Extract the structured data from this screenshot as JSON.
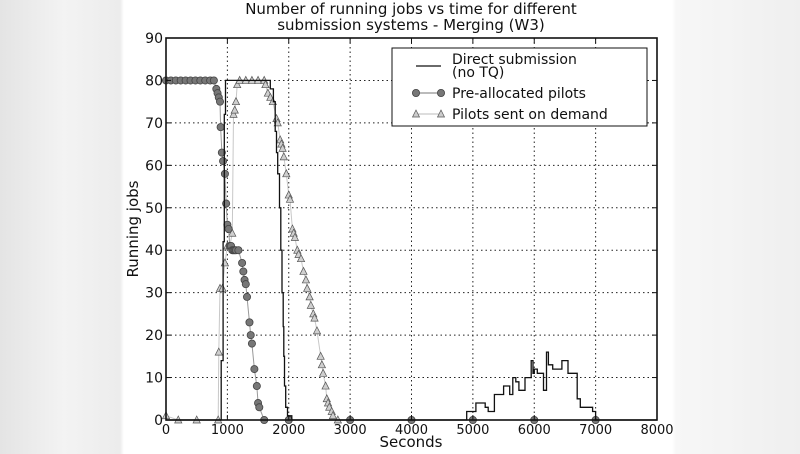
{
  "chart_data": {
    "type": "line",
    "title": "Number of running jobs  vs  time  for different\nsubmission systems   -   Merging (W3)",
    "title_lines": [
      "Number of running jobs  vs  time  for different",
      "submission systems   -   Merging (W3)"
    ],
    "xlabel": "Seconds",
    "ylabel": "Running jobs",
    "xlim": [
      0,
      8000
    ],
    "ylim": [
      0,
      90
    ],
    "xticks": [
      0,
      1000,
      2000,
      3000,
      4000,
      5000,
      6000,
      7000,
      8000
    ],
    "yticks": [
      0,
      10,
      20,
      30,
      40,
      50,
      60,
      70,
      80,
      90
    ],
    "grid": true,
    "legend_position": "upper right",
    "legend": [
      "Direct submission\n(no TQ)",
      "Pre-allocated pilots",
      "Pilots sent on demand"
    ],
    "series": [
      {
        "name": "Direct submission (no TQ)",
        "style": "step",
        "color": "#111111",
        "points": [
          [
            0,
            0
          ],
          [
            900,
            0
          ],
          [
            900,
            14
          ],
          [
            930,
            14
          ],
          [
            930,
            42
          ],
          [
            950,
            42
          ],
          [
            950,
            72
          ],
          [
            970,
            72
          ],
          [
            970,
            80
          ],
          [
            1700,
            80
          ],
          [
            1700,
            78
          ],
          [
            1750,
            78
          ],
          [
            1750,
            75
          ],
          [
            1780,
            75
          ],
          [
            1780,
            68
          ],
          [
            1800,
            68
          ],
          [
            1800,
            63
          ],
          [
            1820,
            63
          ],
          [
            1820,
            58
          ],
          [
            1850,
            58
          ],
          [
            1850,
            50
          ],
          [
            1870,
            50
          ],
          [
            1870,
            40
          ],
          [
            1890,
            40
          ],
          [
            1890,
            30
          ],
          [
            1910,
            30
          ],
          [
            1910,
            22
          ],
          [
            1920,
            22
          ],
          [
            1920,
            15
          ],
          [
            1930,
            15
          ],
          [
            1930,
            8
          ],
          [
            1950,
            8
          ],
          [
            1950,
            3
          ],
          [
            1980,
            3
          ],
          [
            1980,
            1
          ],
          [
            2050,
            1
          ],
          [
            2050,
            0
          ],
          [
            4900,
            0
          ],
          [
            4900,
            2
          ],
          [
            5050,
            2
          ],
          [
            5050,
            4
          ],
          [
            5200,
            4
          ],
          [
            5200,
            3
          ],
          [
            5250,
            3
          ],
          [
            5250,
            2
          ],
          [
            5350,
            2
          ],
          [
            5350,
            6
          ],
          [
            5500,
            6
          ],
          [
            5500,
            8
          ],
          [
            5600,
            8
          ],
          [
            5600,
            6
          ],
          [
            5650,
            6
          ],
          [
            5650,
            10
          ],
          [
            5700,
            10
          ],
          [
            5700,
            9
          ],
          [
            5750,
            9
          ],
          [
            5750,
            7
          ],
          [
            5850,
            7
          ],
          [
            5850,
            10
          ],
          [
            5950,
            10
          ],
          [
            5950,
            14
          ],
          [
            5980,
            14
          ],
          [
            5980,
            11
          ],
          [
            6000,
            11
          ],
          [
            6000,
            12
          ],
          [
            6050,
            12
          ],
          [
            6050,
            11
          ],
          [
            6150,
            11
          ],
          [
            6150,
            7
          ],
          [
            6200,
            7
          ],
          [
            6200,
            16
          ],
          [
            6230,
            16
          ],
          [
            6230,
            13
          ],
          [
            6300,
            13
          ],
          [
            6300,
            12
          ],
          [
            6450,
            12
          ],
          [
            6450,
            14
          ],
          [
            6550,
            14
          ],
          [
            6550,
            11
          ],
          [
            6700,
            11
          ],
          [
            6700,
            5
          ],
          [
            6750,
            5
          ],
          [
            6750,
            3
          ],
          [
            6950,
            3
          ],
          [
            6950,
            2
          ],
          [
            7000,
            2
          ],
          [
            7000,
            0
          ],
          [
            8000,
            0
          ]
        ]
      },
      {
        "name": "Pre-allocated pilots",
        "style": "line-circle",
        "color": "#777777",
        "points": [
          [
            0,
            80
          ],
          [
            80,
            80
          ],
          [
            160,
            80
          ],
          [
            240,
            80
          ],
          [
            320,
            80
          ],
          [
            400,
            80
          ],
          [
            480,
            80
          ],
          [
            560,
            80
          ],
          [
            640,
            80
          ],
          [
            720,
            80
          ],
          [
            780,
            80
          ],
          [
            820,
            78
          ],
          [
            840,
            77
          ],
          [
            860,
            76
          ],
          [
            880,
            75
          ],
          [
            890,
            69
          ],
          [
            910,
            63
          ],
          [
            930,
            61
          ],
          [
            960,
            58
          ],
          [
            980,
            51
          ],
          [
            1000,
            46
          ],
          [
            1020,
            45
          ],
          [
            1040,
            41
          ],
          [
            1060,
            41
          ],
          [
            1080,
            40
          ],
          [
            1100,
            40
          ],
          [
            1120,
            40
          ],
          [
            1140,
            40
          ],
          [
            1180,
            40
          ],
          [
            1240,
            37
          ],
          [
            1260,
            35
          ],
          [
            1280,
            33
          ],
          [
            1300,
            32
          ],
          [
            1320,
            29
          ],
          [
            1360,
            23
          ],
          [
            1380,
            20
          ],
          [
            1400,
            18
          ],
          [
            1440,
            12
          ],
          [
            1480,
            8
          ],
          [
            1500,
            4
          ],
          [
            1520,
            3
          ],
          [
            1600,
            0
          ],
          [
            2000,
            0
          ],
          [
            3000,
            0
          ],
          [
            4000,
            0
          ],
          [
            5000,
            0
          ],
          [
            6000,
            0
          ],
          [
            7000,
            0
          ]
        ]
      },
      {
        "name": "Pilots sent on demand",
        "style": "line-triangle",
        "color": "#bbbbbb",
        "points": [
          [
            0,
            1
          ],
          [
            200,
            0
          ],
          [
            500,
            0
          ],
          [
            850,
            0
          ],
          [
            860,
            16
          ],
          [
            880,
            31
          ],
          [
            920,
            31
          ],
          [
            960,
            37
          ],
          [
            1000,
            41
          ],
          [
            1040,
            41
          ],
          [
            1080,
            44
          ],
          [
            1100,
            72
          ],
          [
            1120,
            73
          ],
          [
            1140,
            75
          ],
          [
            1160,
            79
          ],
          [
            1200,
            80
          ],
          [
            1300,
            80
          ],
          [
            1400,
            80
          ],
          [
            1500,
            80
          ],
          [
            1600,
            80
          ],
          [
            1620,
            79
          ],
          [
            1660,
            77
          ],
          [
            1700,
            76
          ],
          [
            1740,
            75
          ],
          [
            1800,
            71
          ],
          [
            1820,
            70
          ],
          [
            1860,
            66
          ],
          [
            1880,
            65
          ],
          [
            1900,
            64
          ],
          [
            1920,
            62
          ],
          [
            1960,
            58
          ],
          [
            2000,
            53
          ],
          [
            2020,
            52
          ],
          [
            2060,
            45
          ],
          [
            2080,
            44
          ],
          [
            2100,
            43
          ],
          [
            2140,
            40
          ],
          [
            2160,
            39
          ],
          [
            2200,
            38
          ],
          [
            2240,
            35
          ],
          [
            2280,
            33
          ],
          [
            2300,
            31
          ],
          [
            2340,
            29
          ],
          [
            2360,
            27
          ],
          [
            2400,
            25
          ],
          [
            2420,
            24
          ],
          [
            2460,
            21
          ],
          [
            2520,
            15
          ],
          [
            2540,
            13
          ],
          [
            2560,
            11
          ],
          [
            2600,
            8
          ],
          [
            2620,
            5
          ],
          [
            2640,
            4
          ],
          [
            2660,
            3
          ],
          [
            2700,
            2
          ],
          [
            2720,
            1
          ],
          [
            2800,
            0
          ]
        ]
      }
    ]
  }
}
